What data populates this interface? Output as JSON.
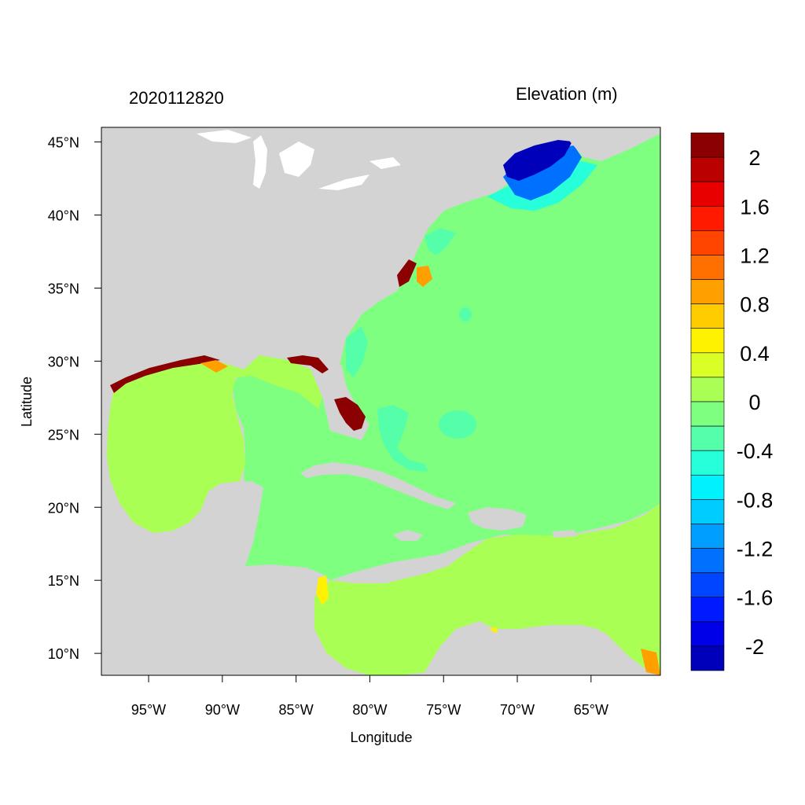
{
  "map": {
    "title_left": "2020112820",
    "title_right": "Elevation (m)",
    "xlabel": "Longitude",
    "ylabel": "Latitude",
    "lon_range": [
      -98.2,
      -60.3
    ],
    "lat_range": [
      8.5,
      46.0
    ],
    "lon_ticks": [
      "95°W",
      "90°W",
      "85°W",
      "80°W",
      "75°W",
      "70°W",
      "65°W"
    ],
    "lon_tick_values": [
      -95,
      -90,
      -85,
      -80,
      -75,
      -70,
      -65
    ],
    "lat_ticks": [
      "10°N",
      "15°N",
      "20°N",
      "25°N",
      "30°N",
      "35°N",
      "40°N",
      "45°N"
    ],
    "lat_tick_values": [
      10,
      15,
      20,
      25,
      30,
      35,
      40,
      45
    ],
    "colors": {
      "land": "#d3d3d3",
      "ocean_atlantic": "#7fff7f",
      "ocean_gulf": "#aaff55",
      "surge_high": "#8b0000",
      "surge_low": "#0000bf",
      "lake": "#ffffff"
    }
  },
  "colorbar": {
    "labels": [
      "2",
      "1.6",
      "1.2",
      "0.8",
      "0.4",
      "0",
      "-0.4",
      "-0.8",
      "-1.2",
      "-1.6",
      "-2"
    ],
    "colors": [
      "#8b0000",
      "#bb0000",
      "#e80000",
      "#ff1a00",
      "#ff4500",
      "#ff7000",
      "#ff9f00",
      "#ffcc00",
      "#fff200",
      "#d9ff26",
      "#aaff55",
      "#7fff7f",
      "#55ffaa",
      "#26ffd9",
      "#00f2ff",
      "#00ccff",
      "#009fff",
      "#0070ff",
      "#0045ff",
      "#001aff",
      "#0000e8",
      "#0000bb"
    ]
  }
}
